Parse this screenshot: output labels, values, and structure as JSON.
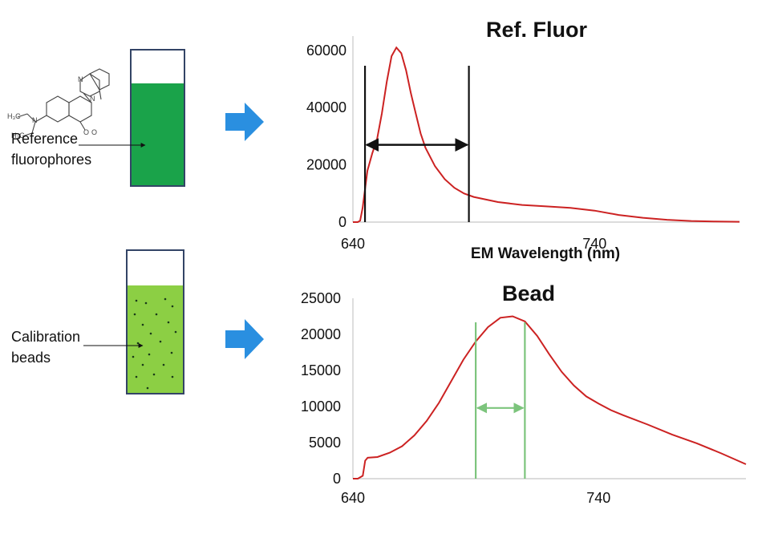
{
  "labels": {
    "reference": [
      "Reference",
      "fluorophores"
    ],
    "beads": [
      "Calibration",
      "beads"
    ]
  },
  "colors": {
    "curve": "#cc2222",
    "ref_bracket": "#111111",
    "bead_bracket": "#7cc47c",
    "ref_liquid": "#1aa34a",
    "bead_liquid": "#8ccf44",
    "arrow": "#2a8fe0"
  },
  "icons": [
    "chemical-structure-icon",
    "cuvette-icon",
    "right-arrow-icon"
  ],
  "chart_data": [
    {
      "type": "line",
      "title": "Ref. Fluor",
      "xlabel": "EM Wavelength (nm)",
      "ylabel": "",
      "xlim": [
        640,
        800
      ],
      "ylim": [
        0,
        65000
      ],
      "x_ticks": [
        640,
        740
      ],
      "y_ticks": [
        0,
        20000,
        40000,
        60000
      ],
      "x_tick_labels": [
        "640",
        "740"
      ],
      "y_tick_labels": [
        "0",
        "20000",
        "40000",
        "60000"
      ],
      "series": [
        {
          "x": [
            640,
            642,
            643,
            644,
            646,
            648,
            650,
            652,
            654,
            656,
            658,
            660,
            662,
            664,
            666,
            668,
            670,
            674,
            678,
            682,
            686,
            690,
            700,
            710,
            720,
            730,
            740,
            750,
            760,
            770,
            780,
            790,
            800
          ],
          "y": [
            0,
            0,
            500,
            5000,
            18000,
            24000,
            29000,
            38000,
            49000,
            58000,
            61000,
            59000,
            53000,
            45000,
            38000,
            31000,
            26000,
            19500,
            15000,
            12000,
            10000,
            8800,
            7000,
            6000,
            5500,
            5000,
            4000,
            2500,
            1500,
            800,
            400,
            200,
            100
          ]
        }
      ],
      "bracket": {
        "x_start": 645,
        "x_end": 688,
        "y": 27000
      }
    },
    {
      "type": "line",
      "title": "Bead",
      "xlabel": "",
      "ylabel": "",
      "xlim": [
        640,
        800
      ],
      "ylim": [
        0,
        25000
      ],
      "x_ticks": [
        640,
        740
      ],
      "y_ticks": [
        0,
        5000,
        10000,
        15000,
        20000,
        25000
      ],
      "x_tick_labels": [
        "640",
        "740"
      ],
      "y_tick_labels": [
        "0",
        "5000",
        "10000",
        "15000",
        "20000",
        "25000"
      ],
      "series": [
        {
          "x": [
            640,
            642,
            644,
            645,
            646,
            650,
            655,
            660,
            665,
            670,
            675,
            680,
            685,
            690,
            695,
            700,
            705,
            710,
            715,
            720,
            725,
            730,
            735,
            740,
            745,
            750,
            760,
            770,
            780,
            790,
            800
          ],
          "y": [
            0,
            0,
            400,
            2500,
            2900,
            3000,
            3600,
            4500,
            6000,
            8000,
            10500,
            13500,
            16500,
            19000,
            21000,
            22300,
            22500,
            21800,
            19800,
            17200,
            14800,
            12900,
            11400,
            10400,
            9500,
            8800,
            7500,
            6100,
            4900,
            3500,
            2000
          ]
        }
      ],
      "bracket": {
        "x_start": 690,
        "x_end": 710,
        "y": 9800
      }
    }
  ]
}
